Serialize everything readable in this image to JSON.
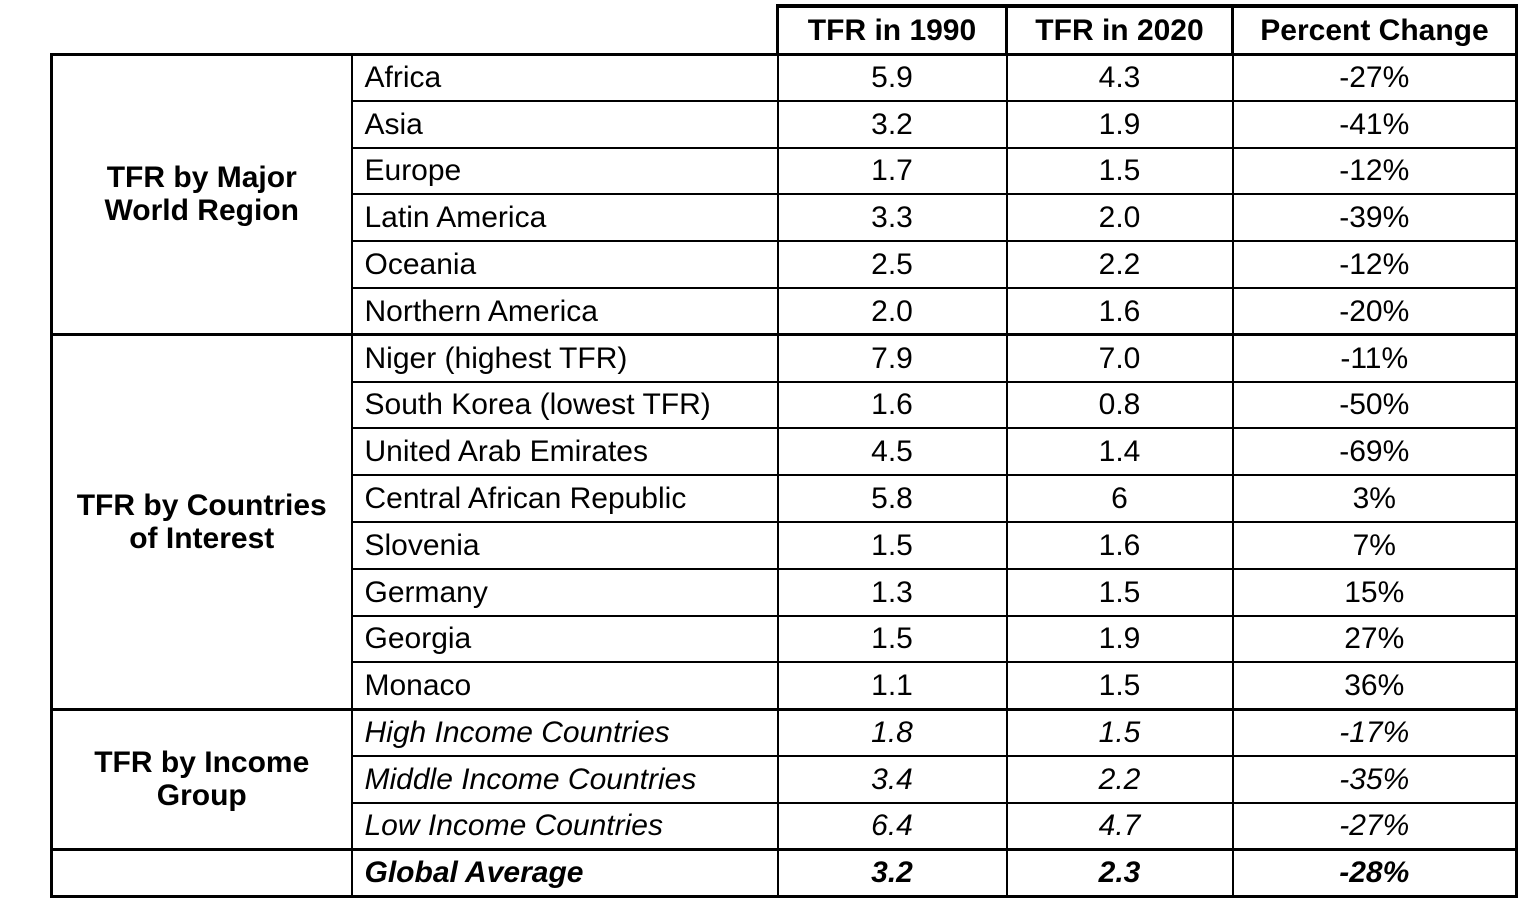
{
  "chart_data": {
    "type": "table",
    "columns": [
      "TFR in 1990",
      "TFR in 2020",
      "Percent Change"
    ],
    "sections": [
      {
        "group": "TFR by Major\nWorld Region",
        "rows": [
          {
            "label": "Africa",
            "tfr_1990": "5.9",
            "tfr_2020": "4.3",
            "percent_change": "-27%"
          },
          {
            "label": "Asia",
            "tfr_1990": "3.2",
            "tfr_2020": "1.9",
            "percent_change": "-41%"
          },
          {
            "label": "Europe",
            "tfr_1990": "1.7",
            "tfr_2020": "1.5",
            "percent_change": "-12%"
          },
          {
            "label": "Latin America",
            "tfr_1990": "3.3",
            "tfr_2020": "2.0",
            "percent_change": "-39%"
          },
          {
            "label": "Oceania",
            "tfr_1990": "2.5",
            "tfr_2020": "2.2",
            "percent_change": "-12%"
          },
          {
            "label": "Northern America",
            "tfr_1990": "2.0",
            "tfr_2020": "1.6",
            "percent_change": "-20%"
          }
        ]
      },
      {
        "group": "TFR by Countries\nof Interest",
        "rows": [
          {
            "label": "Niger (highest TFR)",
            "tfr_1990": "7.9",
            "tfr_2020": "7.0",
            "percent_change": "-11%"
          },
          {
            "label": "South Korea (lowest TFR)",
            "tfr_1990": "1.6",
            "tfr_2020": "0.8",
            "percent_change": "-50%"
          },
          {
            "label": "United Arab Emirates",
            "tfr_1990": "4.5",
            "tfr_2020": "1.4",
            "percent_change": "-69%"
          },
          {
            "label": "Central African Republic",
            "tfr_1990": "5.8",
            "tfr_2020": "6",
            "percent_change": "3%"
          },
          {
            "label": "Slovenia",
            "tfr_1990": "1.5",
            "tfr_2020": "1.6",
            "percent_change": "7%"
          },
          {
            "label": "Germany",
            "tfr_1990": "1.3",
            "tfr_2020": "1.5",
            "percent_change": "15%"
          },
          {
            "label": "Georgia",
            "tfr_1990": "1.5",
            "tfr_2020": "1.9",
            "percent_change": "27%"
          },
          {
            "label": "Monaco",
            "tfr_1990": "1.1",
            "tfr_2020": "1.5",
            "percent_change": "36%"
          }
        ]
      },
      {
        "group": "TFR by Income\nGroup",
        "rows": [
          {
            "label": "High Income Countries",
            "tfr_1990": "1.8",
            "tfr_2020": "1.5",
            "percent_change": "-17%"
          },
          {
            "label": "Middle Income Countries",
            "tfr_1990": "3.4",
            "tfr_2020": "2.2",
            "percent_change": "-35%"
          },
          {
            "label": "Low Income Countries",
            "tfr_1990": "6.4",
            "tfr_2020": "4.7",
            "percent_change": "-27%"
          }
        ]
      }
    ],
    "footer": {
      "group": "",
      "label": "Global Average",
      "tfr_1990": "3.2",
      "tfr_2020": "2.3",
      "percent_change": "-28%"
    },
    "layout": {
      "grid": "on",
      "border_color": "#000000",
      "background": "#ffffff"
    }
  }
}
